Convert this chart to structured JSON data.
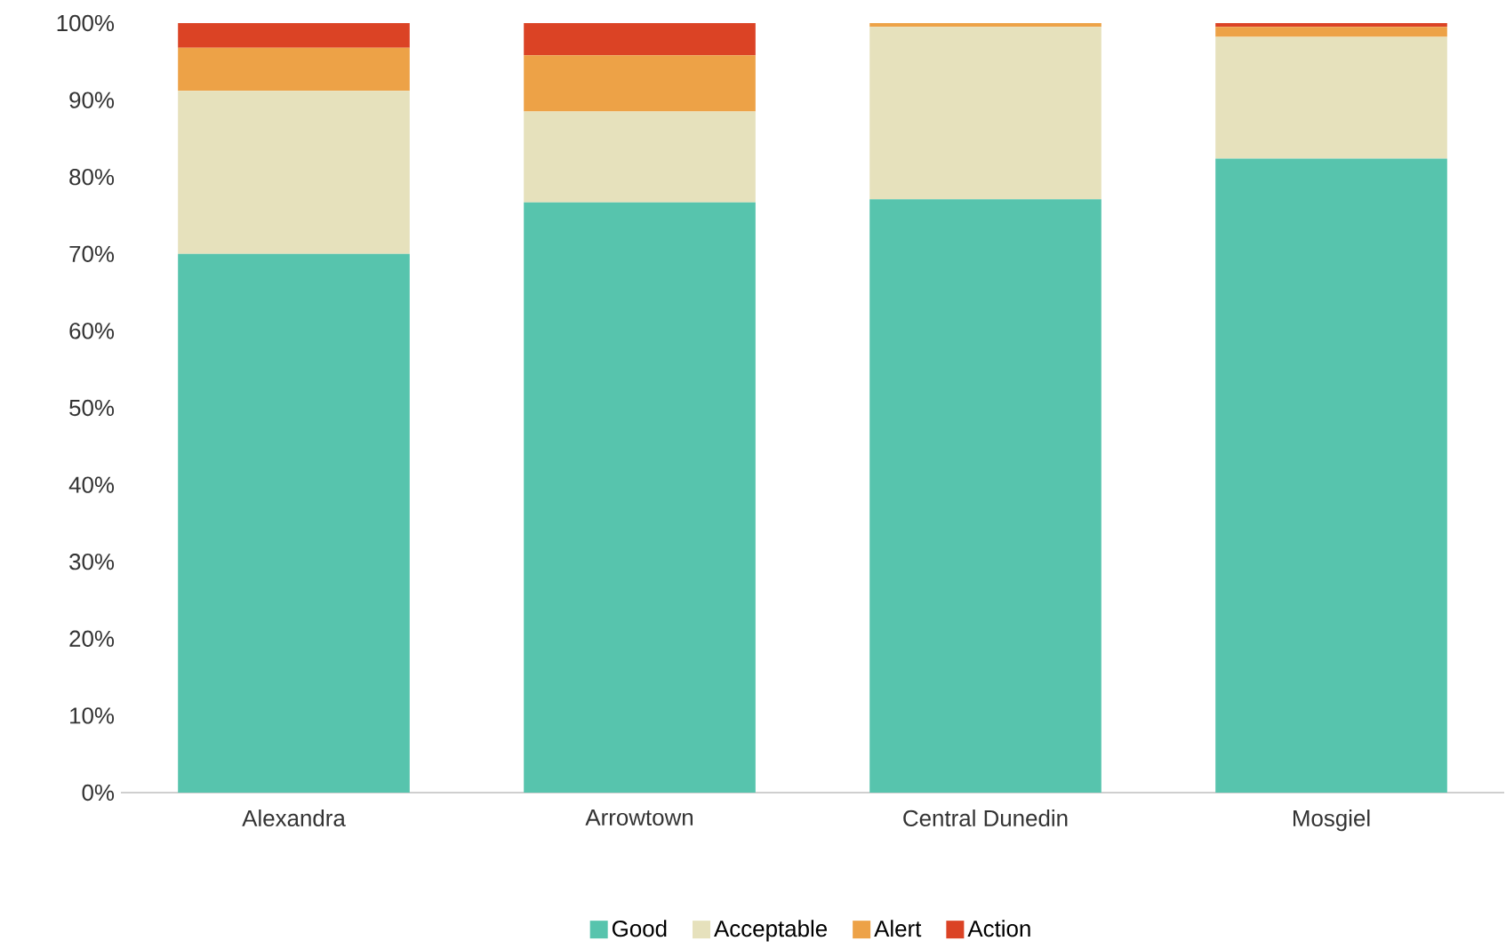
{
  "chart_data": {
    "type": "bar",
    "stacked": true,
    "categories": [
      "Alexandra",
      "Arrowtown",
      "Central Dunedin",
      "Mosgiel"
    ],
    "series": [
      {
        "name": "Good",
        "color": "#57c4ad",
        "values": [
          70.0,
          76.7,
          77.1,
          82.4
        ]
      },
      {
        "name": "Acceptable",
        "color": "#e6e1bc",
        "values": [
          21.2,
          11.8,
          22.4,
          15.8
        ]
      },
      {
        "name": "Alert",
        "color": "#eda247",
        "values": [
          5.6,
          7.3,
          0.5,
          1.3
        ]
      },
      {
        "name": "Action",
        "color": "#db4325",
        "values": [
          3.2,
          4.2,
          0,
          0.5
        ]
      }
    ],
    "ylim": [
      0,
      100
    ],
    "yticks": [
      {
        "value": 0,
        "label": "0%"
      },
      {
        "value": 10,
        "label": "10%"
      },
      {
        "value": 20,
        "label": "20%"
      },
      {
        "value": 30,
        "label": "30%"
      },
      {
        "value": 40,
        "label": "40%"
      },
      {
        "value": 50,
        "label": "50%"
      },
      {
        "value": 60,
        "label": "60%"
      },
      {
        "value": 70,
        "label": "70%"
      },
      {
        "value": 80,
        "label": "80%"
      },
      {
        "value": 90,
        "label": "90%"
      },
      {
        "value": 100,
        "label": "100%"
      }
    ],
    "legend": "bottom"
  }
}
